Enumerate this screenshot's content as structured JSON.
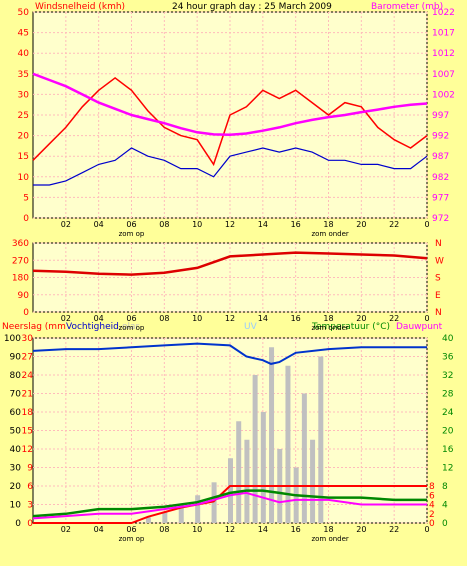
{
  "colors": {
    "background": "#ffff99",
    "plot_bg": "#ffffcc",
    "wind_gust": "#ff0000",
    "wind_avg_blue": "#0000cc",
    "barometer": "#ff00ff",
    "direction": "#dd0000",
    "humidity": "#0033cc",
    "rain": "#ff0000",
    "solar": "#c0c0c0",
    "uv": "#99ccff",
    "temperature": "#008800",
    "dewpoint": "#ff00ff"
  },
  "top_panel": {
    "left_title": "Windsnelheid (kmh)",
    "center_title": "24 hour graph day : 25 March 2009",
    "right_title": "Barometer (mb)",
    "left_ticks": [
      "0",
      "5",
      "10",
      "15",
      "20",
      "25",
      "30",
      "35",
      "40",
      "45",
      "50"
    ],
    "right_ticks": [
      "972",
      "977",
      "982",
      "987",
      "992",
      "997",
      "1002",
      "1007",
      "1012",
      "1017",
      "1022"
    ],
    "x_ticks": [
      "02",
      "04",
      "06",
      "08",
      "10",
      "12",
      "14",
      "16",
      "18",
      "20",
      "22",
      "0"
    ],
    "sun_up": "zom op",
    "sun_down": "zom onder"
  },
  "mid_panel": {
    "left_ticks": [
      "0",
      "90",
      "180",
      "270",
      "360"
    ],
    "right_letters": [
      "N",
      "E",
      "S",
      "W",
      "N"
    ],
    "x_ticks": [
      "02",
      "04",
      "06",
      "08",
      "10",
      "12",
      "14",
      "16",
      "18",
      "20",
      "22",
      "0"
    ],
    "sun_up": "zom op",
    "sun_down": "zom onder"
  },
  "bottom_panel": {
    "label_rain": "Neerslag (mm",
    "label_humidity": "Vochtigheid",
    "label_solar": "olar",
    "label_uv": "UV",
    "label_temp": "Temperatuur (°C)",
    "label_dew": "Dauwpunt",
    "left_ticks": [
      "0",
      "10",
      "20",
      "30",
      "40",
      "50",
      "60",
      "70",
      "80",
      "90",
      "100"
    ],
    "rain_ticks": [
      "0",
      "3",
      "6",
      "9",
      "12",
      "15",
      "18",
      "21",
      "24",
      "27",
      "30"
    ],
    "right_ticks": [
      "0",
      "4",
      "8",
      "12",
      "16",
      "20",
      "24",
      "28",
      "32",
      "36",
      "40"
    ],
    "uv_ticks": [
      "0",
      "2",
      "4",
      "6",
      "8"
    ],
    "x_ticks": [
      "02",
      "04",
      "06",
      "08",
      "10",
      "12",
      "14",
      "16",
      "18",
      "20",
      "22",
      "0"
    ],
    "sun_up": "zom op",
    "sun_down": "zom onder"
  },
  "chart_data": [
    {
      "type": "line",
      "title": "24 hour graph day : 25 March 2009",
      "series": [
        {
          "name": "Windsnelheid (kmh)",
          "axis": "left",
          "x": [
            0,
            1,
            2,
            3,
            4,
            5,
            6,
            7,
            8,
            9,
            10,
            11,
            12,
            13,
            14,
            15,
            16,
            17,
            18,
            19,
            20,
            21,
            22,
            23,
            24
          ],
          "values": [
            14,
            18,
            22,
            27,
            31,
            34,
            31,
            26,
            22,
            20,
            19,
            13,
            25,
            27,
            31,
            29,
            31,
            28,
            25,
            28,
            27,
            22,
            19,
            17,
            20
          ]
        },
        {
          "name": "Windsnelheid (kmh)",
          "axis": "left",
          "x": [
            0,
            1,
            2,
            3,
            4,
            5,
            6,
            7,
            8,
            9,
            10,
            11,
            12,
            13,
            14,
            15,
            16,
            17,
            18,
            19,
            20,
            21,
            22,
            23,
            24
          ],
          "values": [
            8,
            8,
            9,
            11,
            13,
            14,
            17,
            15,
            14,
            12,
            12,
            10,
            15,
            16,
            17,
            16,
            17,
            16,
            14,
            14,
            13,
            13,
            12,
            12,
            15
          ]
        },
        {
          "name": "Barometer (mb)",
          "axis": "right",
          "x": [
            0,
            1,
            2,
            3,
            4,
            5,
            6,
            7,
            8,
            9,
            10,
            11,
            12,
            13,
            14,
            15,
            16,
            17,
            18,
            19,
            20,
            21,
            22,
            23,
            24
          ],
          "values": [
            1007,
            1005.5,
            1004,
            1002,
            1000,
            998.5,
            997,
            996,
            995,
            993.8,
            992.8,
            992.3,
            992.2,
            992.5,
            993.2,
            994,
            995,
            995.8,
            996.5,
            997,
            997.7,
            998.3,
            999,
            999.5,
            999.8
          ]
        }
      ],
      "ylim_left": [
        0,
        50
      ],
      "ylim_right": [
        972,
        1022
      ],
      "xlim": [
        0,
        24
      ]
    },
    {
      "type": "line",
      "series": [
        {
          "name": "Wind direction",
          "x": [
            0,
            2,
            4,
            6,
            8,
            10,
            11,
            12,
            14,
            16,
            18,
            20,
            22,
            24
          ],
          "values": [
            215,
            210,
            200,
            195,
            205,
            230,
            260,
            290,
            300,
            310,
            305,
            300,
            295,
            280
          ]
        }
      ],
      "ylim": [
        0,
        360
      ],
      "xlim": [
        0,
        24
      ]
    },
    {
      "type": "line",
      "series": [
        {
          "name": "Vochtigheid",
          "axis": "left",
          "x": [
            0,
            2,
            4,
            6,
            8,
            10,
            12,
            13,
            14,
            14.5,
            15,
            16,
            18,
            20,
            22,
            24
          ],
          "values": [
            93,
            94,
            94,
            95,
            96,
            97,
            96,
            90,
            88,
            86,
            87,
            92,
            94,
            95,
            95,
            95
          ]
        },
        {
          "name": "Temperatuur (°C)",
          "axis": "right",
          "x": [
            0,
            2,
            4,
            6,
            8,
            10,
            12,
            13,
            14,
            15,
            16,
            18,
            20,
            22,
            24
          ],
          "values": [
            1.5,
            2,
            3,
            3,
            3.5,
            4.5,
            6.5,
            7,
            7,
            6.5,
            6,
            5.5,
            5.5,
            5,
            5
          ]
        },
        {
          "name": "Dauwpunt",
          "axis": "right",
          "x": [
            0,
            2,
            4,
            6,
            8,
            10,
            12,
            13,
            14,
            15,
            16,
            18,
            20,
            22,
            24
          ],
          "values": [
            1,
            1.5,
            2,
            2,
            3,
            4,
            6,
            6.5,
            5.5,
            4.5,
            5,
            5,
            4,
            4,
            4
          ]
        },
        {
          "name": "Neerslag (mm",
          "axis": "rain",
          "x": [
            0,
            6,
            7,
            9,
            11,
            12,
            13,
            24
          ],
          "values": [
            0,
            0,
            1,
            2.5,
            3.5,
            6,
            6,
            6
          ]
        },
        {
          "name": "olar",
          "axis": "left",
          "x": [
            6,
            7,
            8,
            9,
            10,
            11,
            12,
            12.5,
            13,
            13.5,
            14,
            14.5,
            15,
            15.5,
            16,
            16.5,
            17,
            17.5,
            18,
            19,
            20,
            22,
            24
          ],
          "values": [
            0,
            3,
            6,
            10,
            15,
            22,
            35,
            55,
            45,
            80,
            60,
            95,
            40,
            85,
            30,
            70,
            45,
            90,
            0,
            0,
            0,
            0,
            0
          ]
        }
      ],
      "ylim_left": [
        0,
        100
      ],
      "ylim_right": [
        0,
        40
      ],
      "xlim": [
        0,
        24
      ]
    }
  ]
}
